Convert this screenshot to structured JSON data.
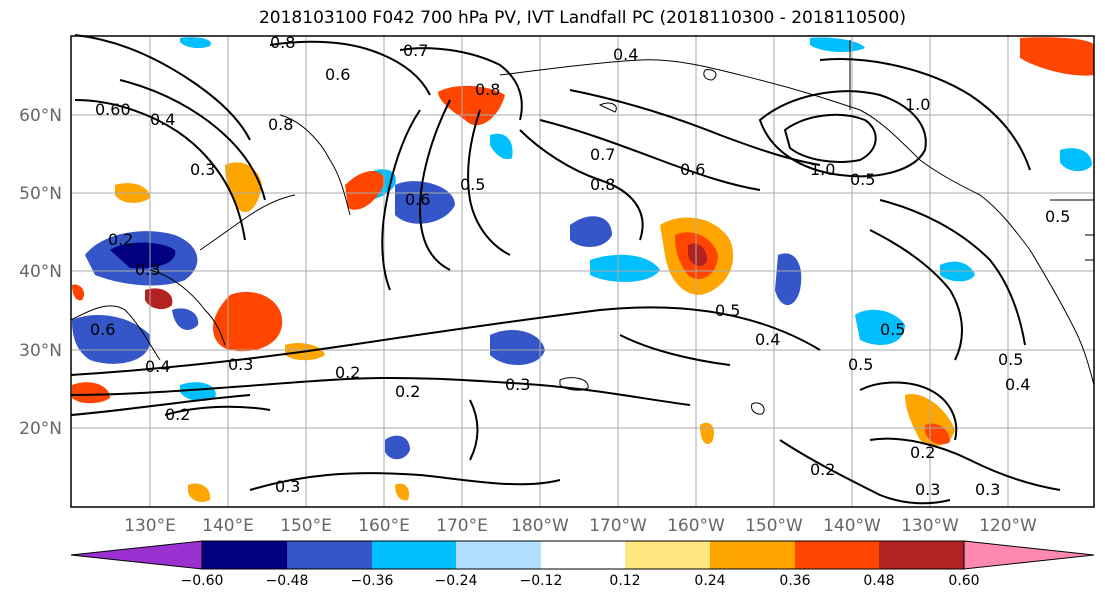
{
  "title": "2018103100 F042 700 hPa PV, IVT Landfall PC (2018110300 - 2018110500)",
  "lon_labels": [
    "130°E",
    "140°E",
    "150°E",
    "160°E",
    "170°E",
    "180°W",
    "170°W",
    "160°W",
    "150°W",
    "140°W",
    "130°W",
    "120°W"
  ],
  "lat_labels": [
    "60°N",
    "50°N",
    "40°N",
    "30°N",
    "20°N"
  ],
  "contour_labels": [
    "0.8",
    "0.7",
    "0.6",
    "0.4",
    "0.60",
    "0.4",
    "0.8",
    "0.3",
    "0.8",
    "0.6",
    "0.5",
    "0.7",
    "0.6",
    "0.8",
    "1.0",
    "1.0",
    "0.5",
    "0.5",
    "0.4",
    "0.5",
    "0.3",
    "0.4",
    "0.2",
    "0.3",
    "0.2",
    "0.2",
    "0.3",
    "0.2",
    "0.5",
    "0.4",
    "0.5",
    "0.2",
    "0.3",
    "0.3",
    "0.2",
    "0.3",
    "0.6",
    "0.5"
  ],
  "colorbar": {
    "ticks": [
      "−0.60",
      "−0.48",
      "−0.36",
      "−0.24",
      "−0.12",
      "0.12",
      "0.24",
      "0.36",
      "0.48",
      "0.60"
    ],
    "colors": [
      "#9b30d0",
      "#000080",
      "#3456c8",
      "#00bfff",
      "#b0e0ff",
      "#ffffff",
      "#ffe680",
      "#ffa500",
      "#ff4500",
      "#b22222",
      "#ff88b0"
    ]
  }
}
